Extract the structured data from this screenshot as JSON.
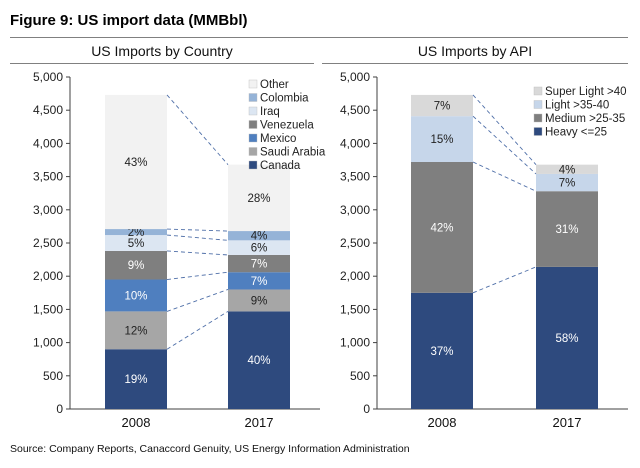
{
  "figure_title": "Figure 9: US import data (MMBbl)",
  "source": "Source: Company Reports, Canaccord Genuity, US Energy Information Administration",
  "chart_data": [
    {
      "id": "country",
      "type": "bar",
      "stacked": true,
      "title": "US Imports by Country",
      "categories": [
        "2008",
        "2017"
      ],
      "ylim": [
        0,
        5000
      ],
      "yticks": [
        "0",
        "500",
        "1,000",
        "1,500",
        "2,000",
        "2,500",
        "3,000",
        "3,500",
        "4,000",
        "4,500",
        "5,000"
      ],
      "grid": false,
      "legend_position": "top-right",
      "connector_lines": "dashed",
      "series": [
        {
          "name": "Canada",
          "color": "#2e4a7e",
          "values": [
            900,
            1470
          ],
          "labels": [
            "19%",
            "40%"
          ]
        },
        {
          "name": "Saudi Arabia",
          "color": "#a6a6a6",
          "values": [
            570,
            330
          ],
          "labels": [
            "12%",
            "9%"
          ]
        },
        {
          "name": "Mexico",
          "color": "#4f7fbf",
          "values": [
            480,
            260
          ],
          "labels": [
            "10%",
            "7%"
          ]
        },
        {
          "name": "Venezuela",
          "color": "#7f7f7f",
          "values": [
            430,
            260
          ],
          "labels": [
            "9%",
            "7%"
          ]
        },
        {
          "name": "Iraq",
          "color": "#dce6f2",
          "values": [
            240,
            220
          ],
          "labels": [
            "5%",
            "6%"
          ]
        },
        {
          "name": "Colombia",
          "color": "#95b3d7",
          "values": [
            90,
            140
          ],
          "labels": [
            "2%",
            "4%"
          ]
        },
        {
          "name": "Other",
          "color": "#f2f2f2",
          "values": [
            2020,
            1000
          ],
          "labels": [
            "43%",
            "28%"
          ]
        }
      ]
    },
    {
      "id": "api",
      "type": "bar",
      "stacked": true,
      "title": "US Imports by API",
      "categories": [
        "2008",
        "2017"
      ],
      "ylim": [
        0,
        5000
      ],
      "yticks": [
        "0",
        "500",
        "1,000",
        "1,500",
        "2,000",
        "2,500",
        "3,000",
        "3,500",
        "4,000",
        "4,500",
        "5,000"
      ],
      "grid": false,
      "legend_position": "top-right",
      "connector_lines": "dashed",
      "series": [
        {
          "name": "Heavy <=25",
          "color": "#2e4a7e",
          "values": [
            1750,
            2140
          ],
          "labels": [
            "37%",
            "58%"
          ]
        },
        {
          "name": "Medium >25-35",
          "color": "#7f7f7f",
          "values": [
            1970,
            1140
          ],
          "labels": [
            "42%",
            "31%"
          ]
        },
        {
          "name": "Light >35-40",
          "color": "#c6d6ea",
          "values": [
            690,
            260
          ],
          "labels": [
            "15%",
            "7%"
          ]
        },
        {
          "name": "Super Light >40",
          "color": "#d9d9d9",
          "values": [
            320,
            140
          ],
          "labels": [
            "7%",
            "4%"
          ]
        }
      ]
    }
  ]
}
